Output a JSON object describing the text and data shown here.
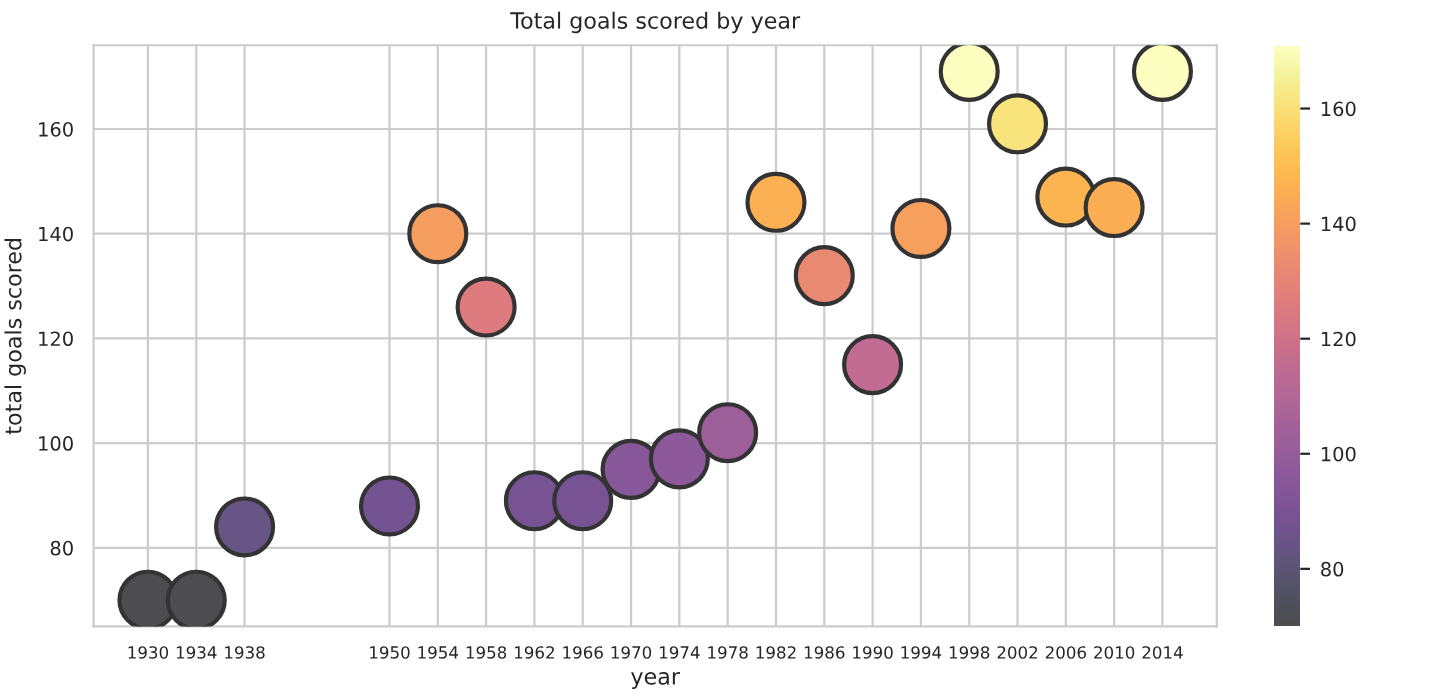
{
  "chart_data": {
    "type": "scatter",
    "title": "Total goals scored by year",
    "xlabel": "year",
    "ylabel": "total goals scored",
    "x": [
      1930,
      1934,
      1938,
      1950,
      1954,
      1958,
      1962,
      1966,
      1970,
      1974,
      1978,
      1982,
      1986,
      1990,
      1994,
      1998,
      2002,
      2006,
      2010,
      2014
    ],
    "values": [
      70,
      70,
      84,
      88,
      140,
      126,
      89,
      89,
      95,
      97,
      102,
      146,
      132,
      115,
      141,
      171,
      161,
      147,
      145,
      171
    ],
    "cvalues": [
      70,
      70,
      84,
      88,
      140,
      126,
      89,
      89,
      95,
      97,
      102,
      146,
      132,
      115,
      141,
      171,
      161,
      147,
      145,
      171
    ],
    "xlim": [
      1925.5,
      2018.5
    ],
    "xticks": [
      1930,
      1934,
      1938,
      1950,
      1954,
      1958,
      1962,
      1966,
      1970,
      1974,
      1978,
      1982,
      1986,
      1990,
      1994,
      1998,
      2002,
      2006,
      2010,
      2014
    ],
    "ylim": [
      65,
      176
    ],
    "yticks": [
      80,
      100,
      120,
      140,
      160
    ],
    "clim": [
      70,
      171
    ],
    "cticks": [
      80,
      100,
      120,
      140,
      160
    ],
    "grid": true,
    "marker": "circle",
    "legend": false
  }
}
